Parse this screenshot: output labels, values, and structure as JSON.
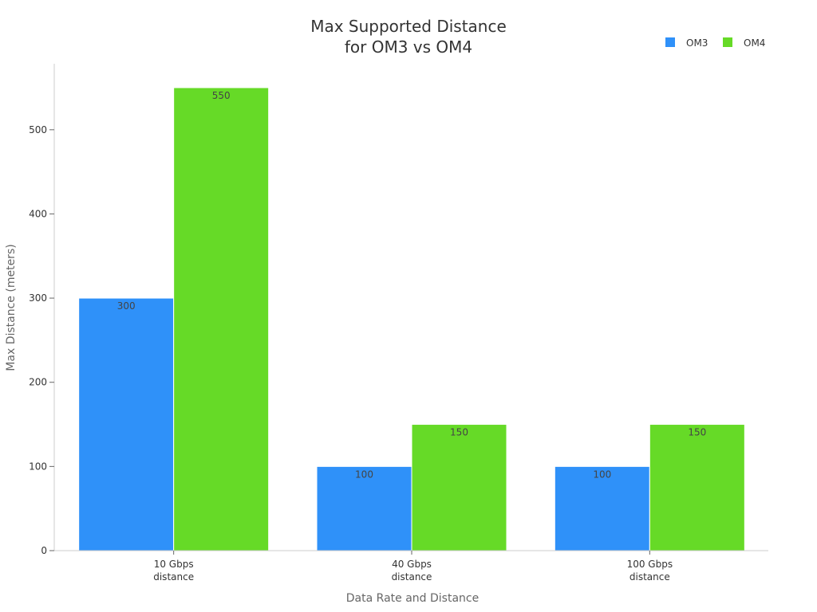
{
  "chart_data": {
    "type": "bar",
    "title": [
      "Max Supported Distance",
      "for OM3 vs OM4"
    ],
    "xlabel": "Data Rate and Distance",
    "ylabel": "Max Distance (meters)",
    "categories": [
      [
        "10 Gbps",
        "distance"
      ],
      [
        "40 Gbps",
        "distance"
      ],
      [
        "100 Gbps",
        "distance"
      ]
    ],
    "series": [
      {
        "name": "OM3",
        "color": "#2f91f9",
        "values": [
          300,
          100,
          100
        ]
      },
      {
        "name": "OM4",
        "color": "#66da27",
        "values": [
          550,
          150,
          150
        ]
      }
    ],
    "ylim": [
      0,
      580
    ],
    "yticks": [
      0,
      100,
      200,
      300,
      400,
      500
    ],
    "grid": false,
    "legend_position": "top-right",
    "data_labels": true
  }
}
